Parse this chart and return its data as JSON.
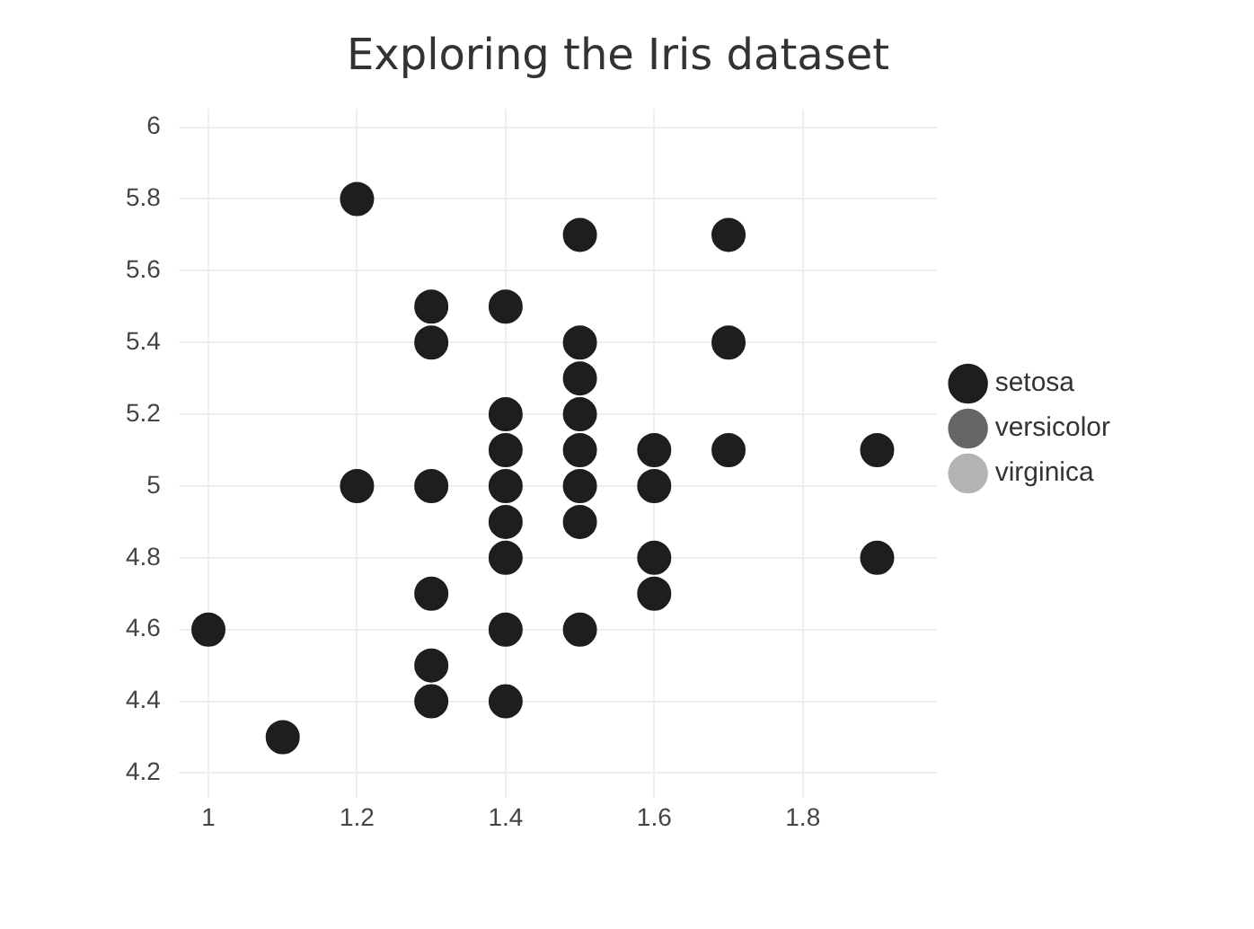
{
  "chart_data": {
    "type": "scatter",
    "title": "Exploring the Iris dataset",
    "xlim": [
      0.96,
      1.98
    ],
    "ylim": [
      4.13,
      6.05
    ],
    "xticks": [
      1,
      1.2,
      1.4,
      1.6,
      1.8
    ],
    "yticks": [
      4.2,
      4.4,
      4.6,
      4.8,
      5,
      5.2,
      5.4,
      5.6,
      5.8,
      6
    ],
    "grid": true,
    "legend": "right",
    "marker": "circle",
    "series": [
      {
        "name": "setosa",
        "color": "#1e1e1e",
        "x": [
          1.0,
          1.1,
          1.2,
          1.2,
          1.3,
          1.3,
          1.3,
          1.3,
          1.3,
          1.3,
          1.4,
          1.4,
          1.4,
          1.4,
          1.4,
          1.4,
          1.4,
          1.4,
          1.5,
          1.5,
          1.5,
          1.5,
          1.5,
          1.5,
          1.5,
          1.5,
          1.6,
          1.6,
          1.6,
          1.6,
          1.7,
          1.7,
          1.7,
          1.9,
          1.9
        ],
        "values": [
          4.6,
          4.3,
          5.8,
          5.0,
          5.5,
          5.4,
          5.0,
          4.7,
          4.5,
          4.4,
          5.5,
          5.2,
          5.1,
          5.0,
          4.9,
          4.8,
          4.6,
          4.4,
          5.7,
          5.4,
          5.3,
          5.2,
          5.1,
          5.0,
          4.9,
          4.6,
          5.1,
          5.0,
          4.8,
          4.7,
          5.7,
          5.4,
          5.1,
          5.1,
          4.8
        ]
      },
      {
        "name": "versicolor",
        "color": "#666666"
      },
      {
        "name": "virginica",
        "color": "#b3b3b3"
      }
    ]
  }
}
